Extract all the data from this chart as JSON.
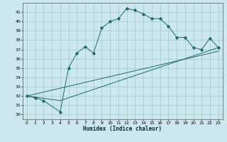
{
  "xlabel": "Humidex (Indice chaleur)",
  "ylabel": "",
  "bg_color": "#cce8ee",
  "grid_color": "#a0c8d0",
  "line_color": "#1a6b6b",
  "xlim": [
    -0.5,
    23.5
  ],
  "ylim": [
    29.5,
    42.0
  ],
  "xticks": [
    0,
    1,
    2,
    3,
    4,
    5,
    6,
    7,
    8,
    9,
    10,
    11,
    12,
    13,
    14,
    15,
    16,
    17,
    18,
    19,
    20,
    21,
    22,
    23
  ],
  "yticks": [
    30,
    31,
    32,
    33,
    34,
    35,
    36,
    37,
    38,
    39,
    40,
    41
  ],
  "line1_x": [
    0,
    1,
    2,
    4,
    5,
    6,
    7,
    8,
    9,
    10,
    11,
    12,
    13,
    14,
    15,
    16,
    17,
    18,
    19,
    20,
    21,
    22,
    23
  ],
  "line1_y": [
    32.0,
    31.8,
    31.5,
    30.3,
    35.0,
    36.6,
    37.3,
    36.6,
    39.3,
    40.0,
    40.3,
    41.4,
    41.2,
    40.8,
    40.3,
    40.3,
    39.5,
    38.3,
    38.3,
    37.2,
    37.0,
    38.2,
    37.2
  ],
  "line2_x": [
    0,
    4,
    23
  ],
  "line2_y": [
    32.0,
    31.5,
    37.2
  ],
  "line3_x": [
    0,
    23
  ],
  "line3_y": [
    32.0,
    36.8
  ]
}
